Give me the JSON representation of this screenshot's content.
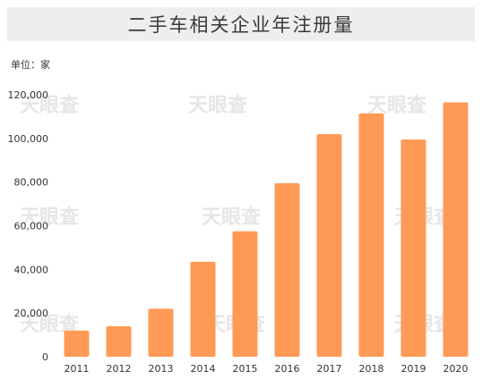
{
  "chart_data": {
    "type": "bar",
    "title": "二手车相关企业年注册量",
    "unit_label": "单位：家",
    "categories": [
      "2011",
      "2012",
      "2013",
      "2014",
      "2015",
      "2016",
      "2017",
      "2018",
      "2019",
      "2020"
    ],
    "values": [
      12000,
      14000,
      22000,
      43500,
      57500,
      79500,
      102000,
      111500,
      99500,
      116500
    ],
    "ylim": [
      0,
      120000
    ],
    "yticks": [
      "0",
      "20,000",
      "40,000",
      "60,000",
      "80,000",
      "100,000",
      "120,000"
    ],
    "grid": false,
    "bar_color": "#ff9a56"
  },
  "watermark": "天眼查"
}
